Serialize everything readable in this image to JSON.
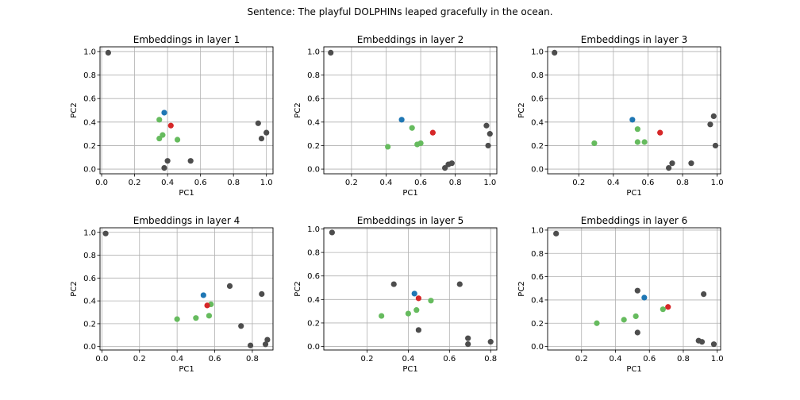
{
  "figure": {
    "suptitle": "Sentence: The playful DOLPHINs leaped gracefully in the ocean."
  },
  "colors": {
    "other": "#4d4d4d",
    "target": "#1f77b4",
    "related": "#d62728",
    "context": "#66bb5e",
    "grid": "#b0b0b0"
  },
  "chart_data": [
    {
      "type": "scatter",
      "title": "Embeddings in layer 1",
      "xlabel": "PC1",
      "ylabel": "PC2",
      "xlim": [
        -0.01,
        1.04
      ],
      "ylim": [
        -0.04,
        1.04
      ],
      "xticks": [
        0.0,
        0.2,
        0.4,
        0.6,
        0.8,
        1.0
      ],
      "xtick_labels": [
        "0.0",
        "0.2",
        "0.4",
        "0.6",
        "0.8",
        "1.0"
      ],
      "yticks": [
        0.0,
        0.2,
        0.4,
        0.6,
        0.8,
        1.0
      ],
      "ytick_labels": [
        "0.0",
        "0.2",
        "0.4",
        "0.6",
        "0.8",
        "1.0"
      ],
      "grid": true,
      "points": [
        {
          "x": 0.04,
          "y": 0.99,
          "group": "other"
        },
        {
          "x": 0.38,
          "y": 0.01,
          "group": "other"
        },
        {
          "x": 0.4,
          "y": 0.07,
          "group": "other"
        },
        {
          "x": 0.54,
          "y": 0.07,
          "group": "other"
        },
        {
          "x": 0.95,
          "y": 0.39,
          "group": "other"
        },
        {
          "x": 0.97,
          "y": 0.26,
          "group": "other"
        },
        {
          "x": 1.0,
          "y": 0.31,
          "group": "other"
        },
        {
          "x": 0.35,
          "y": 0.42,
          "group": "context"
        },
        {
          "x": 0.35,
          "y": 0.26,
          "group": "context"
        },
        {
          "x": 0.37,
          "y": 0.29,
          "group": "context"
        },
        {
          "x": 0.46,
          "y": 0.25,
          "group": "context"
        },
        {
          "x": 0.38,
          "y": 0.48,
          "group": "target"
        },
        {
          "x": 0.42,
          "y": 0.37,
          "group": "related"
        }
      ]
    },
    {
      "type": "scatter",
      "title": "Embeddings in layer 2",
      "xlabel": "PC1",
      "ylabel": "PC2",
      "xlim": [
        0.04,
        1.04
      ],
      "ylim": [
        -0.04,
        1.04
      ],
      "xticks": [
        0.2,
        0.4,
        0.6,
        0.8,
        1.0
      ],
      "xtick_labels": [
        "0.2",
        "0.4",
        "0.6",
        "0.8",
        "1.0"
      ],
      "yticks": [
        0.0,
        0.2,
        0.4,
        0.6,
        0.8,
        1.0
      ],
      "ytick_labels": [
        "0.0",
        "0.2",
        "0.4",
        "0.6",
        "0.8",
        "1.0"
      ],
      "grid": true,
      "points": [
        {
          "x": 0.08,
          "y": 0.99,
          "group": "other"
        },
        {
          "x": 0.74,
          "y": 0.01,
          "group": "other"
        },
        {
          "x": 0.76,
          "y": 0.04,
          "group": "other"
        },
        {
          "x": 0.78,
          "y": 0.05,
          "group": "other"
        },
        {
          "x": 0.98,
          "y": 0.37,
          "group": "other"
        },
        {
          "x": 0.99,
          "y": 0.2,
          "group": "other"
        },
        {
          "x": 1.0,
          "y": 0.3,
          "group": "other"
        },
        {
          "x": 0.41,
          "y": 0.19,
          "group": "context"
        },
        {
          "x": 0.55,
          "y": 0.35,
          "group": "context"
        },
        {
          "x": 0.58,
          "y": 0.21,
          "group": "context"
        },
        {
          "x": 0.6,
          "y": 0.22,
          "group": "context"
        },
        {
          "x": 0.49,
          "y": 0.42,
          "group": "target"
        },
        {
          "x": 0.67,
          "y": 0.31,
          "group": "related"
        }
      ]
    },
    {
      "type": "scatter",
      "title": "Embeddings in layer 3",
      "xlabel": "PC1",
      "ylabel": "PC2",
      "xlim": [
        0.02,
        1.02
      ],
      "ylim": [
        -0.04,
        1.04
      ],
      "xticks": [
        0.2,
        0.4,
        0.6,
        0.8,
        1.0
      ],
      "xtick_labels": [
        "0.2",
        "0.4",
        "0.6",
        "0.8",
        "1.0"
      ],
      "yticks": [
        0.0,
        0.2,
        0.4,
        0.6,
        0.8,
        1.0
      ],
      "ytick_labels": [
        "0.0",
        "0.2",
        "0.4",
        "0.6",
        "0.8",
        "1.0"
      ],
      "grid": true,
      "points": [
        {
          "x": 0.06,
          "y": 0.99,
          "group": "other"
        },
        {
          "x": 0.72,
          "y": 0.01,
          "group": "other"
        },
        {
          "x": 0.74,
          "y": 0.05,
          "group": "other"
        },
        {
          "x": 0.85,
          "y": 0.05,
          "group": "other"
        },
        {
          "x": 0.96,
          "y": 0.38,
          "group": "other"
        },
        {
          "x": 0.98,
          "y": 0.45,
          "group": "other"
        },
        {
          "x": 0.99,
          "y": 0.2,
          "group": "other"
        },
        {
          "x": 0.29,
          "y": 0.22,
          "group": "context"
        },
        {
          "x": 0.54,
          "y": 0.34,
          "group": "context"
        },
        {
          "x": 0.54,
          "y": 0.23,
          "group": "context"
        },
        {
          "x": 0.58,
          "y": 0.23,
          "group": "context"
        },
        {
          "x": 0.51,
          "y": 0.42,
          "group": "target"
        },
        {
          "x": 0.67,
          "y": 0.31,
          "group": "related"
        }
      ]
    },
    {
      "type": "scatter",
      "title": "Embeddings in layer 4",
      "xlabel": "PC1",
      "ylabel": "PC2",
      "xlim": [
        -0.01,
        0.91
      ],
      "ylim": [
        -0.03,
        1.04
      ],
      "xticks": [
        0.0,
        0.2,
        0.4,
        0.6,
        0.8
      ],
      "xtick_labels": [
        "0.0",
        "0.2",
        "0.4",
        "0.6",
        "0.8"
      ],
      "yticks": [
        0.0,
        0.2,
        0.4,
        0.6,
        0.8,
        1.0
      ],
      "ytick_labels": [
        "0.0",
        "0.2",
        "0.4",
        "0.6",
        "0.8",
        "1.0"
      ],
      "grid": true,
      "points": [
        {
          "x": 0.02,
          "y": 0.99,
          "group": "other"
        },
        {
          "x": 0.68,
          "y": 0.53,
          "group": "other"
        },
        {
          "x": 0.74,
          "y": 0.18,
          "group": "other"
        },
        {
          "x": 0.79,
          "y": 0.01,
          "group": "other"
        },
        {
          "x": 0.85,
          "y": 0.46,
          "group": "other"
        },
        {
          "x": 0.87,
          "y": 0.02,
          "group": "other"
        },
        {
          "x": 0.88,
          "y": 0.06,
          "group": "other"
        },
        {
          "x": 0.4,
          "y": 0.24,
          "group": "context"
        },
        {
          "x": 0.5,
          "y": 0.25,
          "group": "context"
        },
        {
          "x": 0.57,
          "y": 0.27,
          "group": "context"
        },
        {
          "x": 0.58,
          "y": 0.37,
          "group": "context"
        },
        {
          "x": 0.54,
          "y": 0.45,
          "group": "target"
        },
        {
          "x": 0.56,
          "y": 0.36,
          "group": "related"
        }
      ]
    },
    {
      "type": "scatter",
      "title": "Embeddings in layer 5",
      "xlabel": "PC1",
      "ylabel": "PC2",
      "xlim": [
        -0.01,
        0.83
      ],
      "ylim": [
        -0.03,
        1.01
      ],
      "xticks": [
        0.2,
        0.4,
        0.6,
        0.8
      ],
      "xtick_labels": [
        "0.2",
        "0.4",
        "0.6",
        "0.8"
      ],
      "yticks": [
        0.0,
        0.2,
        0.4,
        0.6,
        0.8,
        1.0
      ],
      "ytick_labels": [
        "0.0",
        "0.2",
        "0.4",
        "0.6",
        "0.8",
        "1.0"
      ],
      "grid": true,
      "points": [
        {
          "x": 0.03,
          "y": 0.97,
          "group": "other"
        },
        {
          "x": 0.33,
          "y": 0.53,
          "group": "other"
        },
        {
          "x": 0.45,
          "y": 0.14,
          "group": "other"
        },
        {
          "x": 0.65,
          "y": 0.53,
          "group": "other"
        },
        {
          "x": 0.69,
          "y": 0.07,
          "group": "other"
        },
        {
          "x": 0.69,
          "y": 0.02,
          "group": "other"
        },
        {
          "x": 0.8,
          "y": 0.04,
          "group": "other"
        },
        {
          "x": 0.27,
          "y": 0.26,
          "group": "context"
        },
        {
          "x": 0.4,
          "y": 0.28,
          "group": "context"
        },
        {
          "x": 0.44,
          "y": 0.31,
          "group": "context"
        },
        {
          "x": 0.51,
          "y": 0.39,
          "group": "context"
        },
        {
          "x": 0.43,
          "y": 0.45,
          "group": "target"
        },
        {
          "x": 0.45,
          "y": 0.41,
          "group": "related"
        }
      ]
    },
    {
      "type": "scatter",
      "title": "Embeddings in layer 6",
      "xlabel": "PC1",
      "ylabel": "PC2",
      "xlim": [
        0.0,
        1.02
      ],
      "ylim": [
        -0.03,
        1.02
      ],
      "xticks": [
        0.2,
        0.4,
        0.6,
        0.8,
        1.0
      ],
      "xtick_labels": [
        "0.2",
        "0.4",
        "0.6",
        "0.8",
        "1.0"
      ],
      "yticks": [
        0.0,
        0.2,
        0.4,
        0.6,
        0.8,
        1.0
      ],
      "ytick_labels": [
        "0.0",
        "0.2",
        "0.4",
        "0.6",
        "0.8",
        "1.0"
      ],
      "grid": true,
      "points": [
        {
          "x": 0.05,
          "y": 0.97,
          "group": "other"
        },
        {
          "x": 0.53,
          "y": 0.48,
          "group": "other"
        },
        {
          "x": 0.53,
          "y": 0.12,
          "group": "other"
        },
        {
          "x": 0.89,
          "y": 0.05,
          "group": "other"
        },
        {
          "x": 0.91,
          "y": 0.04,
          "group": "other"
        },
        {
          "x": 0.92,
          "y": 0.45,
          "group": "other"
        },
        {
          "x": 0.98,
          "y": 0.02,
          "group": "other"
        },
        {
          "x": 0.29,
          "y": 0.2,
          "group": "context"
        },
        {
          "x": 0.45,
          "y": 0.23,
          "group": "context"
        },
        {
          "x": 0.52,
          "y": 0.26,
          "group": "context"
        },
        {
          "x": 0.68,
          "y": 0.32,
          "group": "context"
        },
        {
          "x": 0.57,
          "y": 0.42,
          "group": "target"
        },
        {
          "x": 0.71,
          "y": 0.34,
          "group": "related"
        }
      ]
    }
  ]
}
